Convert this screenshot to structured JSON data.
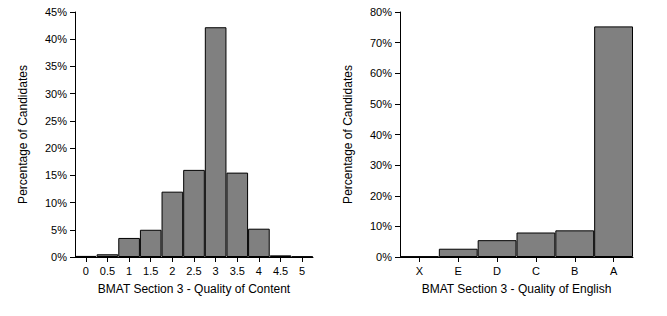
{
  "chart_data": [
    {
      "type": "bar",
      "x_label": "BMAT Section 3 - Quality of Content",
      "y_label": "Percentage of Candidates",
      "categories": [
        "0",
        "0.5",
        "1",
        "1.5",
        "2",
        "2.5",
        "3",
        "3.5",
        "4",
        "4.5",
        "5"
      ],
      "values": [
        0.2,
        0.5,
        3.5,
        5,
        12,
        16,
        42.2,
        15.5,
        5.2,
        0.3,
        0.1
      ],
      "color": "#808080",
      "ylim": [
        0,
        45
      ],
      "yticks": [
        {
          "value": 0,
          "label": "0%"
        },
        {
          "value": 5,
          "label": "5%"
        },
        {
          "value": 10,
          "label": "10%"
        },
        {
          "value": 15,
          "label": "15%"
        },
        {
          "value": 20,
          "label": "20%"
        },
        {
          "value": 25,
          "label": "25%"
        },
        {
          "value": 30,
          "label": "30%"
        },
        {
          "value": 35,
          "label": "35%"
        },
        {
          "value": 40,
          "label": "40%"
        },
        {
          "value": 45,
          "label": "45%"
        }
      ],
      "grid": false
    },
    {
      "type": "bar",
      "x_label": "BMAT Section 3 - Quality of English",
      "y_label": "Percentage of Candidates",
      "categories": [
        "X",
        "E",
        "D",
        "C",
        "B",
        "A"
      ],
      "values": [
        0.2,
        2.7,
        5.5,
        8,
        8.7,
        75.3
      ],
      "color": "#808080",
      "ylim": [
        0,
        80
      ],
      "yticks": [
        {
          "value": 0,
          "label": "0%"
        },
        {
          "value": 10,
          "label": "10%"
        },
        {
          "value": 20,
          "label": "20%"
        },
        {
          "value": 30,
          "label": "30%"
        },
        {
          "value": 40,
          "label": "40%"
        },
        {
          "value": 50,
          "label": "50%"
        },
        {
          "value": 60,
          "label": "60%"
        },
        {
          "value": 70,
          "label": "70%"
        },
        {
          "value": 80,
          "label": "80%"
        }
      ],
      "grid": false
    }
  ]
}
